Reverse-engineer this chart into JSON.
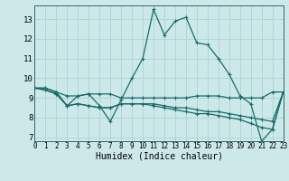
{
  "xlabel": "Humidex (Indice chaleur)",
  "x_ticks": [
    0,
    1,
    2,
    3,
    4,
    5,
    6,
    7,
    8,
    9,
    10,
    11,
    12,
    13,
    14,
    15,
    16,
    17,
    18,
    19,
    20,
    21,
    22,
    23
  ],
  "y_ticks": [
    7,
    8,
    9,
    10,
    11,
    12,
    13
  ],
  "xlim": [
    0,
    23
  ],
  "ylim": [
    6.8,
    13.7
  ],
  "background_color": "#cce8e8",
  "grid_color": "#aad4d4",
  "line_color": "#1a6b6b",
  "series1": [
    9.5,
    9.5,
    9.3,
    8.6,
    9.1,
    9.2,
    8.6,
    7.8,
    8.9,
    10.0,
    11.0,
    13.5,
    12.2,
    12.9,
    13.1,
    11.8,
    11.7,
    11.0,
    10.2,
    9.1,
    8.7,
    6.8,
    7.4,
    9.3
  ],
  "series2": [
    9.5,
    9.5,
    9.3,
    9.1,
    9.1,
    9.2,
    9.2,
    9.2,
    9.0,
    9.0,
    9.0,
    9.0,
    9.0,
    9.0,
    9.0,
    9.1,
    9.1,
    9.1,
    9.0,
    9.0,
    9.0,
    9.0,
    9.3,
    9.3
  ],
  "series3": [
    9.5,
    9.4,
    9.2,
    8.6,
    8.7,
    8.6,
    8.5,
    8.5,
    8.7,
    8.7,
    8.7,
    8.7,
    8.6,
    8.5,
    8.5,
    8.4,
    8.3,
    8.3,
    8.2,
    8.1,
    8.0,
    7.9,
    7.8,
    9.3
  ],
  "series4": [
    9.5,
    9.4,
    9.2,
    8.6,
    8.7,
    8.6,
    8.5,
    8.5,
    8.7,
    8.7,
    8.7,
    8.6,
    8.5,
    8.4,
    8.3,
    8.2,
    8.2,
    8.1,
    8.0,
    7.9,
    7.7,
    7.5,
    7.4,
    9.3
  ]
}
